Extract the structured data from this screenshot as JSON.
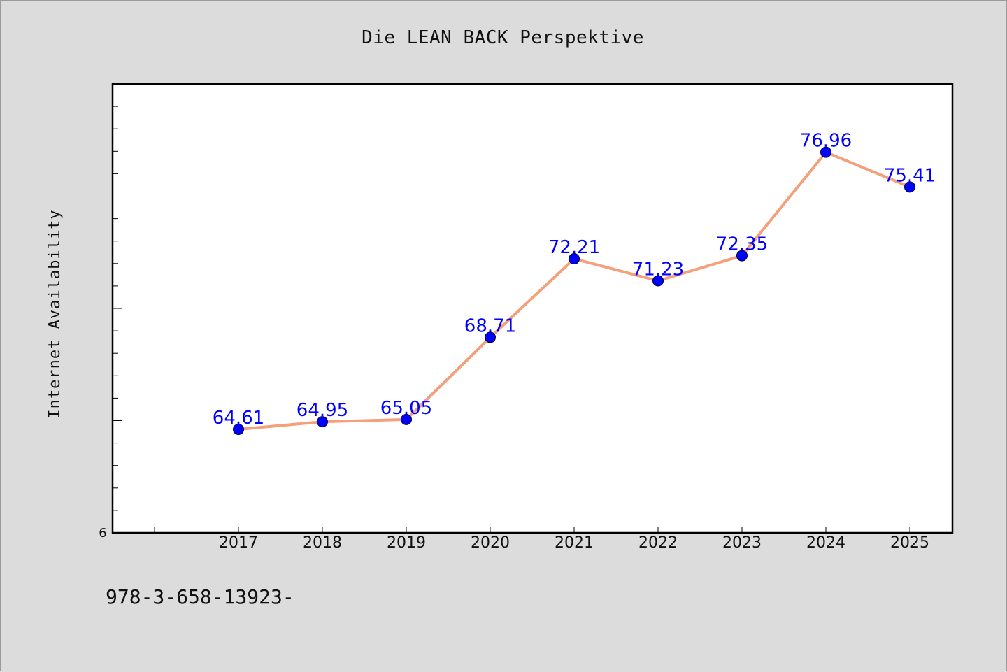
{
  "chart_data": {
    "type": "line",
    "title": "Die LEAN BACK Perspektive",
    "xlabel": "",
    "ylabel": "Internet Availability",
    "categories": [
      "2017",
      "2018",
      "2019",
      "2020",
      "2021",
      "2022",
      "2023",
      "2024",
      "2025"
    ],
    "series": [
      {
        "values": [
          64.61,
          64.95,
          65.05,
          68.71,
          72.21,
          71.23,
          72.35,
          76.96,
          75.41
        ],
        "data_labels": [
          "64.61",
          "64.95",
          "65.05",
          "68.71",
          "72.21",
          "71.23",
          "72.35",
          "76.96",
          "75.41"
        ],
        "line_color": "#f4a07a",
        "marker_color": "#0000ff"
      }
    ],
    "yticks_labeled": [
      "6"
    ],
    "ylim": [
      60,
      80
    ],
    "grid": false,
    "legend": "none"
  },
  "footer_text": "978-3-658-13923-",
  "colors": {
    "background": "#dcdcdc",
    "plot_background": "#ffffff",
    "line": "#f4a07a",
    "marker": "#0000ff",
    "data_label": "#0000ff"
  }
}
